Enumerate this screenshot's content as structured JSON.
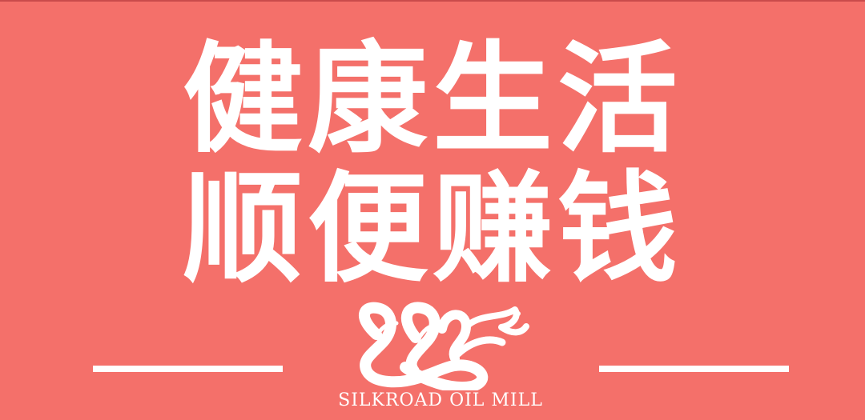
{
  "headline": {
    "line1": "健康生活",
    "line2": "顺便赚钱"
  },
  "brand": {
    "name": "SILKROAD OIL MILL",
    "logo_icon": "snake-logo-icon"
  },
  "colors": {
    "background": "#f4706a",
    "foreground": "#ffffff"
  }
}
